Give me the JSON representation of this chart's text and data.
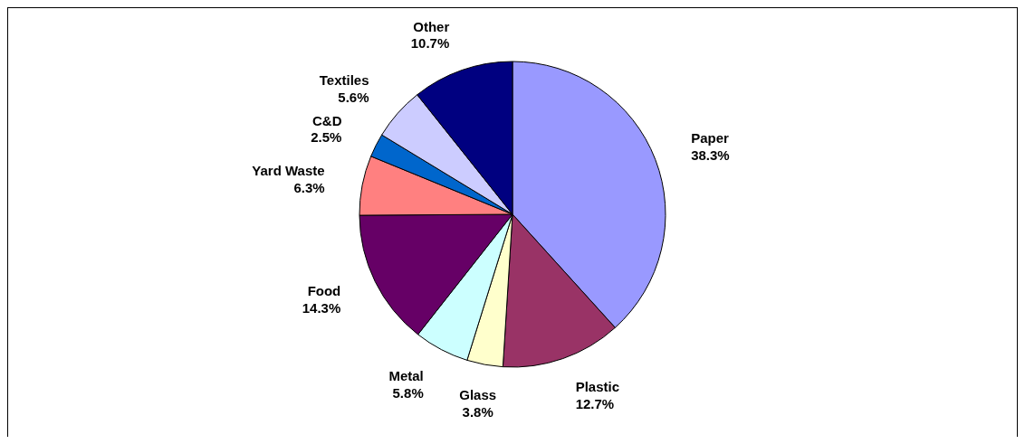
{
  "chart_data": {
    "type": "pie",
    "categories": [
      "Paper",
      "Plastic",
      "Glass",
      "Metal",
      "Food",
      "Yard Waste",
      "C&D",
      "Textiles",
      "Other"
    ],
    "values": [
      38.3,
      12.7,
      3.8,
      5.8,
      14.3,
      6.3,
      2.5,
      5.6,
      10.7
    ],
    "value_labels": [
      "38.3%",
      "12.7%",
      "3.8%",
      "5.8%",
      "14.3%",
      "6.3%",
      "2.5%",
      "5.6%",
      "10.7%"
    ],
    "colors": [
      "#9999ff",
      "#993366",
      "#ffffcc",
      "#ccffff",
      "#660066",
      "#ff8080",
      "#0066cc",
      "#ccccff",
      "#000080"
    ]
  }
}
